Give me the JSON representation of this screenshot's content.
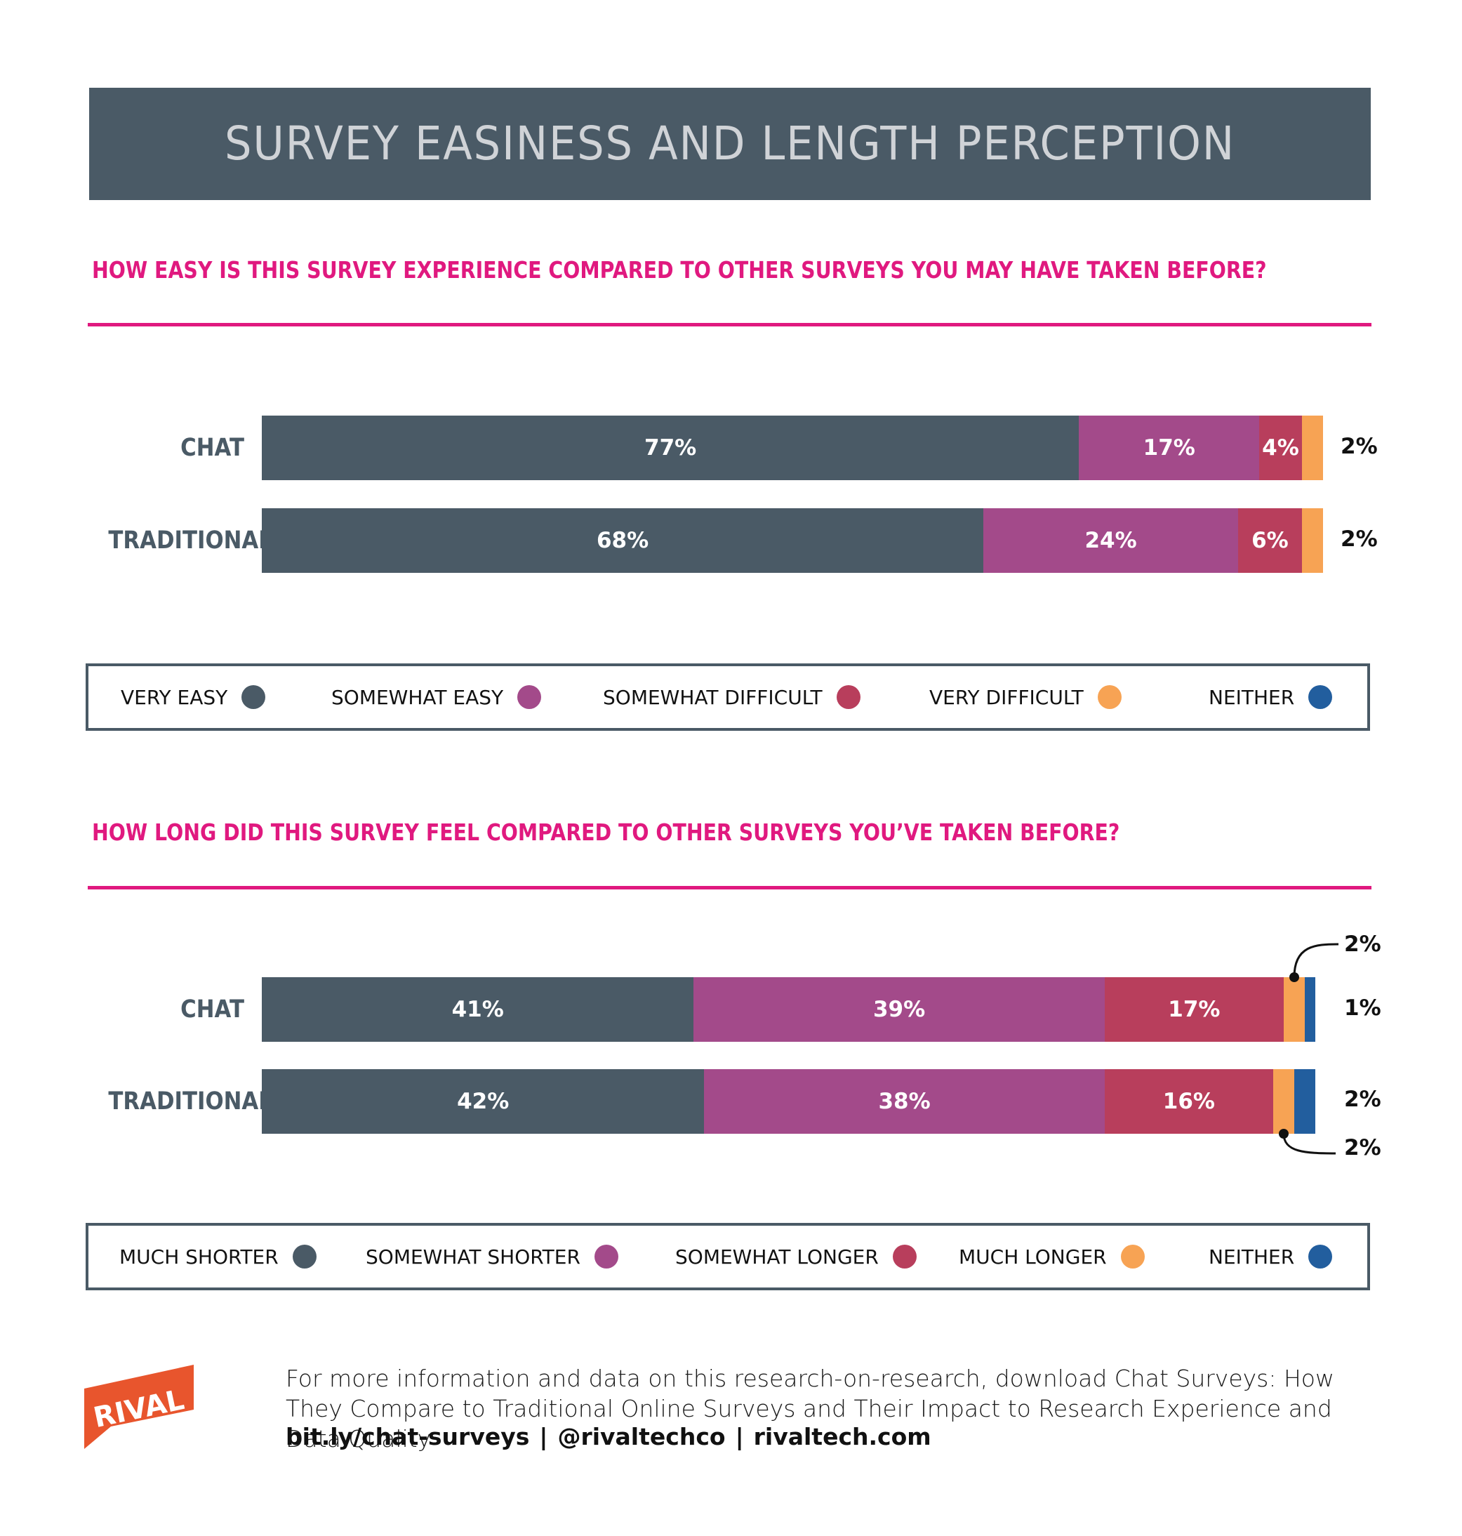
{
  "title": "SURVEY EASINESS AND LENGTH PERCEPTION",
  "colors": {
    "banner": "#4a5a66",
    "accent": "#e0197f",
    "series": [
      "#4a5a66",
      "#a34a8a",
      "#b83e5c",
      "#f7a354",
      "#225e9e"
    ],
    "logo": "#e8552d"
  },
  "chart_data": [
    {
      "type": "bar",
      "orientation": "horizontal",
      "stacked": true,
      "title": "HOW EASY IS THIS SURVEY EXPERIENCE COMPARED TO OTHER SURVEYS YOU MAY HAVE TAKEN BEFORE?",
      "categories": [
        "CHAT",
        "TRADITIONAL"
      ],
      "series": [
        {
          "name": "VERY EASY",
          "color": "#4a5a66",
          "values": [
            77,
            68
          ]
        },
        {
          "name": "SOMEWHAT EASY",
          "color": "#a34a8a",
          "values": [
            17,
            24
          ]
        },
        {
          "name": "SOMEWHAT DIFFICULT",
          "color": "#b83e5c",
          "values": [
            4,
            6
          ]
        },
        {
          "name": "VERY DIFFICULT",
          "color": "#f7a354",
          "values": [
            2,
            2
          ]
        },
        {
          "name": "NEITHER",
          "color": "#225e9e",
          "values": [
            0,
            0
          ]
        }
      ],
      "labels": [
        [
          "77%",
          "17%",
          "4%",
          "2%",
          ""
        ],
        [
          "68%",
          "24%",
          "6%",
          "2%",
          ""
        ]
      ],
      "xlim": [
        0,
        100
      ],
      "legend": "bottom"
    },
    {
      "type": "bar",
      "orientation": "horizontal",
      "stacked": true,
      "title": "HOW LONG DID THIS SURVEY FEEL COMPARED TO OTHER SURVEYS YOU’VE TAKEN BEFORE?",
      "categories": [
        "CHAT",
        "TRADITIONAL"
      ],
      "series": [
        {
          "name": "MUCH SHORTER",
          "color": "#4a5a66",
          "values": [
            41,
            42
          ]
        },
        {
          "name": "SOMEWHAT SHORTER",
          "color": "#a34a8a",
          "values": [
            39,
            38
          ]
        },
        {
          "name": "SOMEWHAT LONGER",
          "color": "#b83e5c",
          "values": [
            17,
            16
          ]
        },
        {
          "name": "MUCH LONGER",
          "color": "#f7a354",
          "values": [
            2,
            2
          ]
        },
        {
          "name": "NEITHER",
          "color": "#225e9e",
          "values": [
            1,
            2
          ]
        }
      ],
      "labels": [
        [
          "41%",
          "39%",
          "17%",
          "2%",
          "1%"
        ],
        [
          "42%",
          "38%",
          "16%",
          "2%",
          "2%"
        ]
      ],
      "xlim": [
        0,
        100
      ],
      "legend": "bottom"
    }
  ],
  "footer": {
    "text": "For more information and data on this research-on-research, download Chat Surveys: How They Compare to Traditional Online Surveys and Their Impact to Research Experience and Data Quality",
    "links": [
      "bit.ly/chat-surveys",
      "@rivaltechco",
      "rivaltech.com"
    ],
    "separator": "|",
    "logo_text": "RIVAL"
  }
}
